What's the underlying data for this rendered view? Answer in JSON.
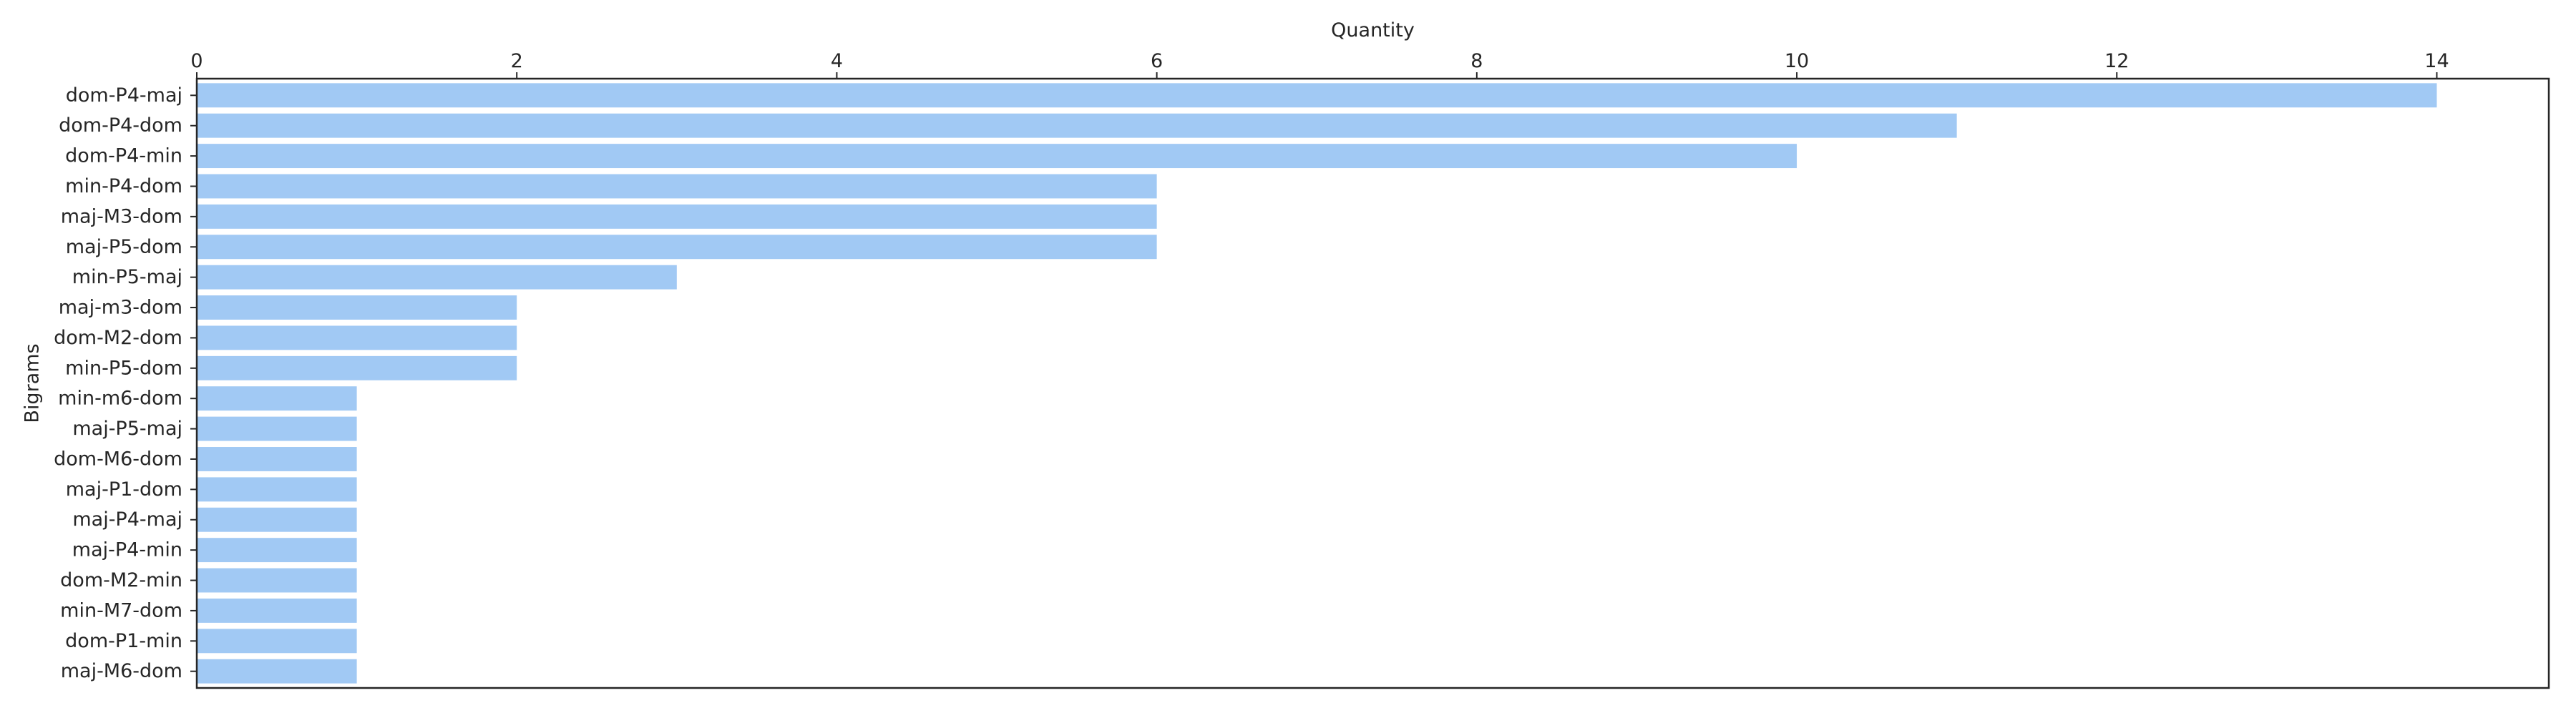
{
  "chart_data": {
    "type": "bar",
    "orientation": "horizontal",
    "title": "",
    "xlabel": "Quantity",
    "ylabel": "Bigrams",
    "x_axis_position": "top",
    "xlim": [
      0,
      14.7
    ],
    "xticks": [
      0,
      2,
      4,
      6,
      8,
      10,
      12,
      14
    ],
    "categories": [
      "dom-P4-maj",
      "dom-P4-dom",
      "dom-P4-min",
      "min-P4-dom",
      "maj-M3-dom",
      "maj-P5-dom",
      "min-P5-maj",
      "maj-m3-dom",
      "dom-M2-dom",
      "min-P5-dom",
      "min-m6-dom",
      "maj-P5-maj",
      "dom-M6-dom",
      "maj-P1-dom",
      "maj-P4-maj",
      "maj-P4-min",
      "dom-M2-min",
      "min-M7-dom",
      "dom-P1-min",
      "maj-M6-dom"
    ],
    "values": [
      14,
      11,
      10,
      6,
      6,
      6,
      3,
      2,
      2,
      2,
      1,
      1,
      1,
      1,
      1,
      1,
      1,
      1,
      1,
      1
    ],
    "grid": false,
    "legend": "none",
    "colors": {
      "bar": "#a1c9f4",
      "axis": "#262626",
      "text": "#262626"
    }
  }
}
